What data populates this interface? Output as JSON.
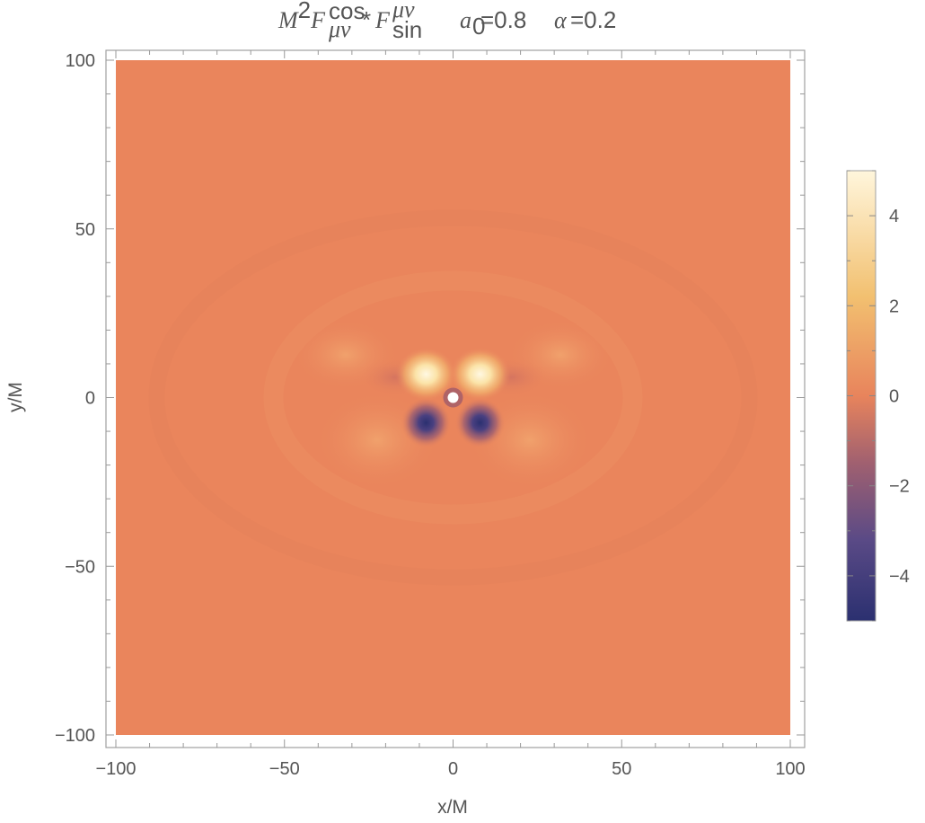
{
  "chart_data": {
    "type": "heatmap",
    "title": {
      "M": "M",
      "sq": "2",
      "F1": "F",
      "F1_sup": "cos",
      "F1_sub": "μν",
      "star": "*",
      "F2": "F",
      "F2_sup": "μν",
      "F2_sub": "sin",
      "a": "a",
      "a_sub": "0",
      "a_val": "=0.8",
      "alpha": "α",
      "alpha_val": "=0.2"
    },
    "xlabel": "x/M",
    "ylabel": "y/M",
    "xlim": [
      -100,
      100
    ],
    "ylim": [
      -100,
      100
    ],
    "x_ticks": [
      "−100",
      "−50",
      "0",
      "50",
      "100"
    ],
    "y_ticks": [
      "100",
      "50",
      "0",
      "−50",
      "−100"
    ],
    "x_tick_values": [
      -100,
      -50,
      0,
      50,
      100
    ],
    "y_tick_values": [
      100,
      50,
      0,
      -50,
      -100
    ],
    "colorbar": {
      "range": [
        -5,
        5
      ],
      "ticks": [
        "4",
        "2",
        "0",
        "−2",
        "−4"
      ],
      "tick_values": [
        4,
        2,
        0,
        -2,
        -4
      ],
      "colors": [
        "#2b3070",
        "#5a4a86",
        "#a06070",
        "#e8845c",
        "#f2c070",
        "#fff6dc"
      ]
    },
    "features": [
      {
        "x": -8,
        "y": 8,
        "value": 5
      },
      {
        "x": 8,
        "y": 8,
        "value": 5
      },
      {
        "x": -8,
        "y": -8,
        "value": -5
      },
      {
        "x": 8,
        "y": -8,
        "value": -5
      }
    ],
    "colors": {
      "background_field": "#ea855c",
      "hole": "#ffffff"
    }
  }
}
